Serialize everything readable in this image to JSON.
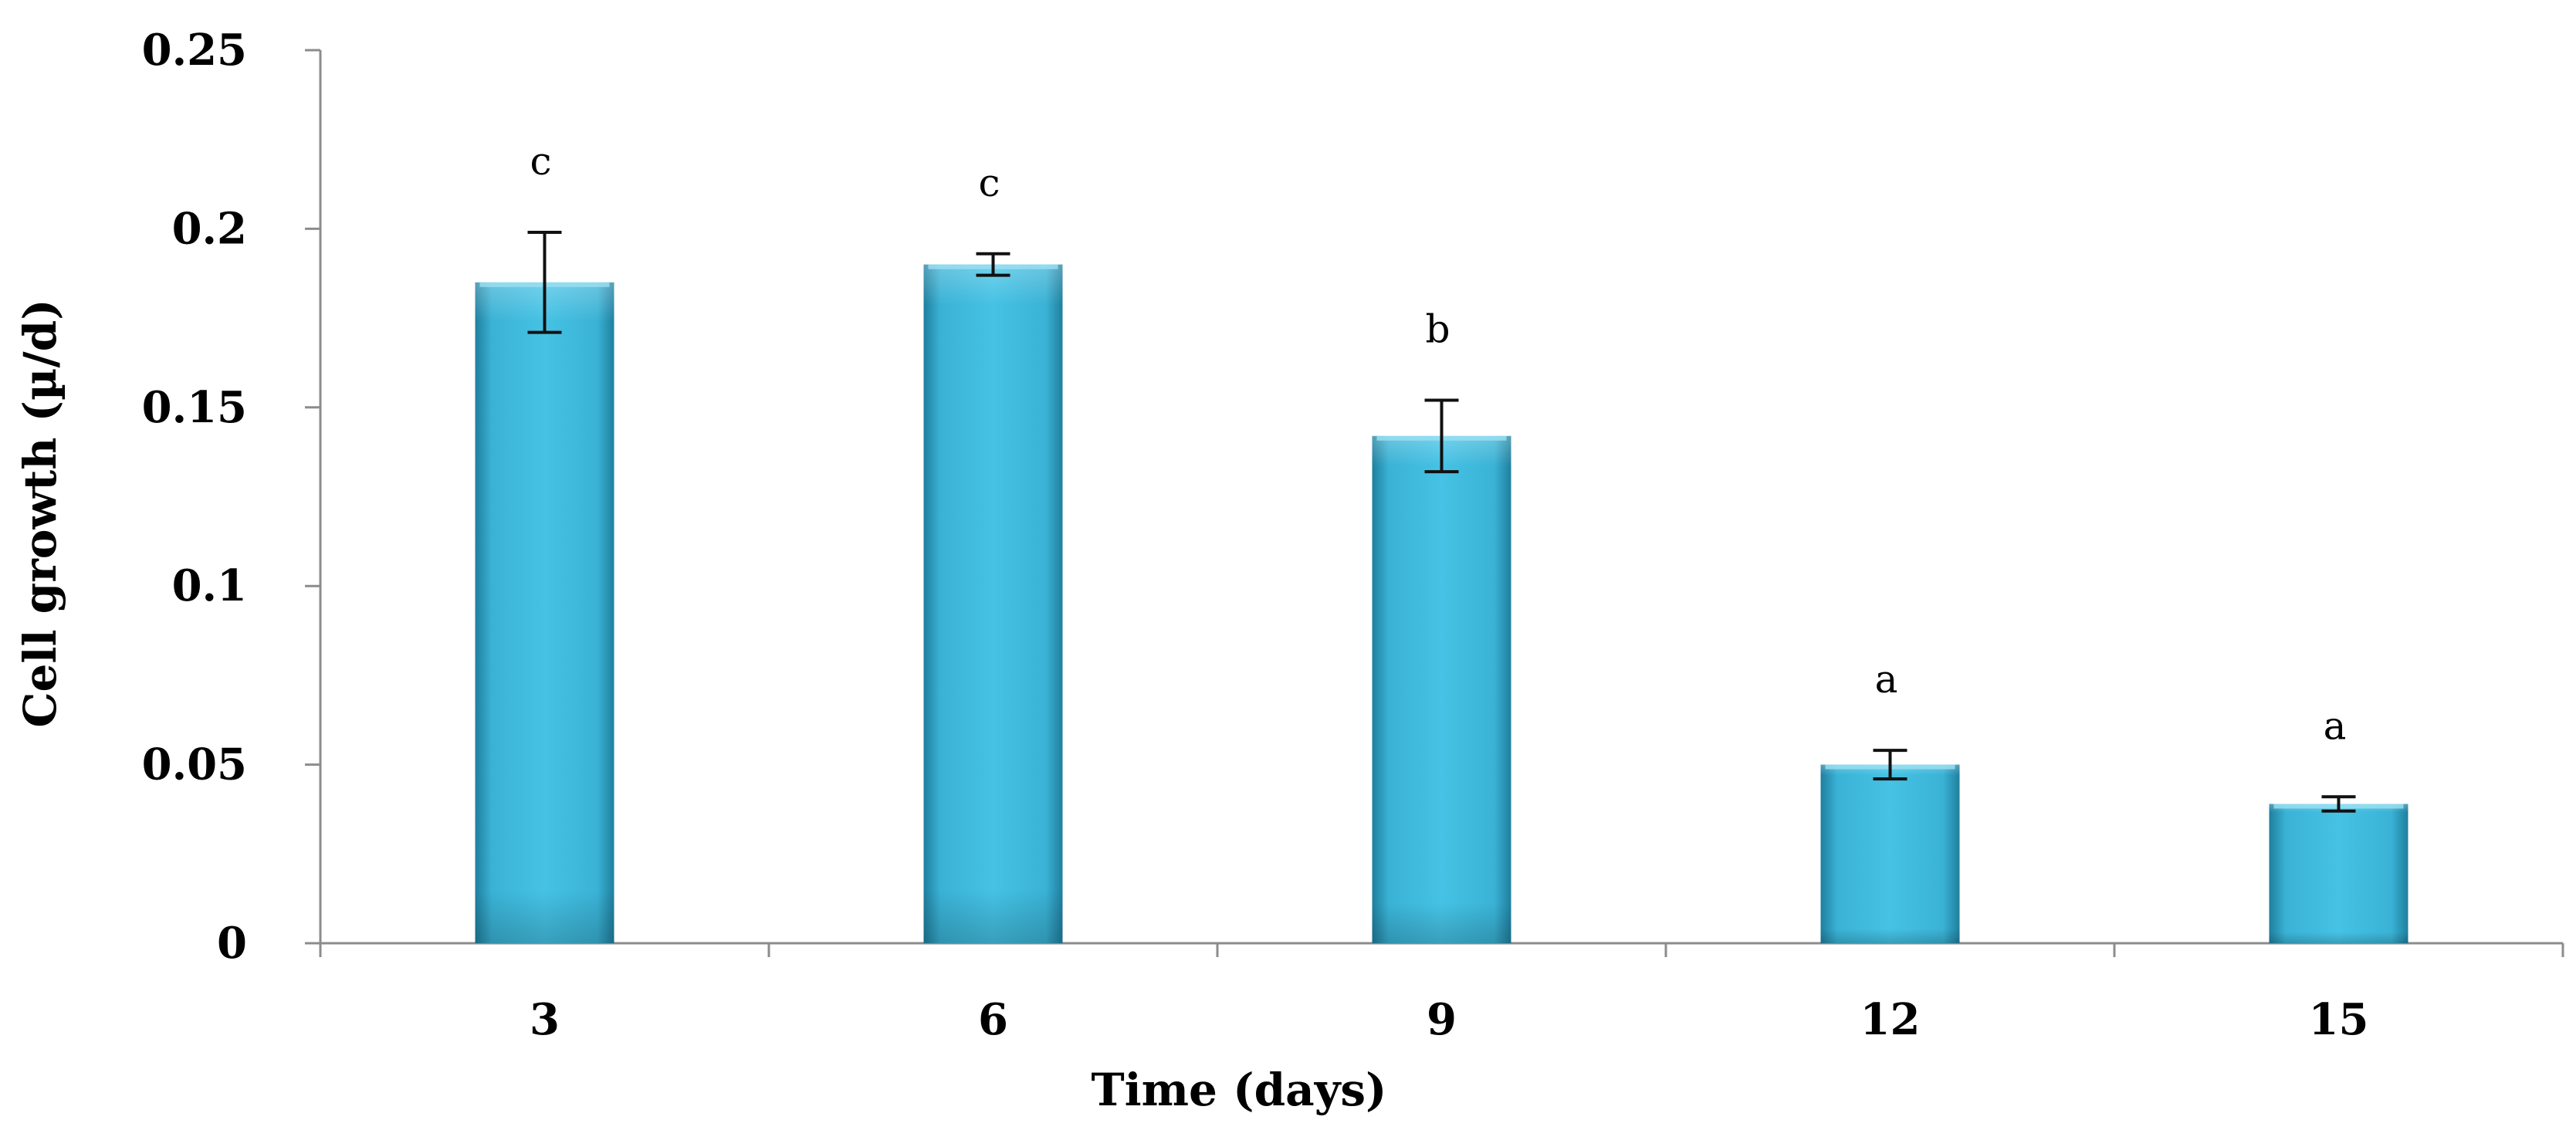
{
  "chart_data": {
    "type": "bar",
    "title": "",
    "xlabel": "Time (days)",
    "ylabel": "Cell growth (µ/d)",
    "categories": [
      "3",
      "6",
      "9",
      "12",
      "15"
    ],
    "values": [
      0.185,
      0.19,
      0.142,
      0.05,
      0.039
    ],
    "error": [
      0.014,
      0.003,
      0.01,
      0.004,
      0.002
    ],
    "significance": [
      "c",
      "c",
      "b",
      "a",
      "a"
    ],
    "ylim": [
      0,
      0.25
    ],
    "yticks": [
      0,
      0.05,
      0.1,
      0.15,
      0.2,
      0.25
    ],
    "ytick_labels": [
      "0",
      "0.05",
      "0.1",
      "0.15",
      "0.2",
      "0.25"
    ],
    "grid": false,
    "legend": "none",
    "bar_color": "#3BB3D6",
    "bar_color_dark": "#1D7E9C"
  }
}
